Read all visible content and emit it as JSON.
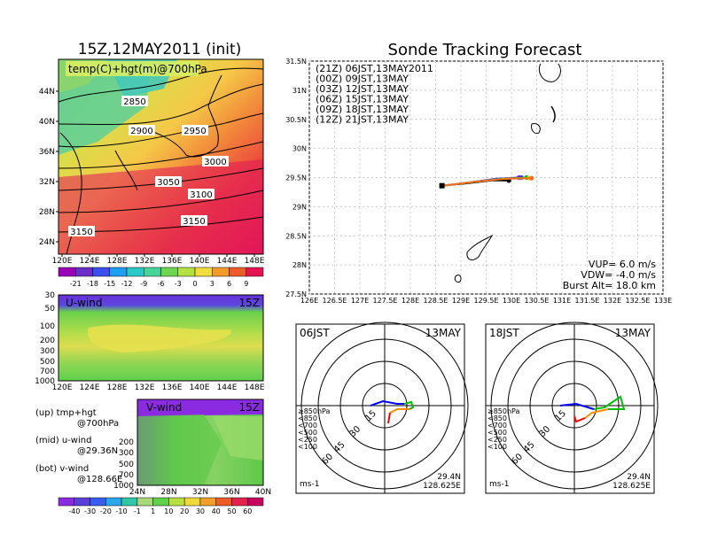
{
  "chart_data": [
    {
      "type": "heatmap",
      "title": "15Z,12MAY2011 (init)",
      "panel_label": "temp(C)+hgt(m)@700hPa",
      "x_ticks": [
        "120E",
        "124E",
        "128E",
        "132E",
        "136E",
        "140E",
        "144E",
        "148E"
      ],
      "y_ticks": [
        "24N",
        "28N",
        "32N",
        "36N",
        "40N",
        "44N"
      ],
      "contour_labels": [
        "2850",
        "2900",
        "2950",
        "3000",
        "3050",
        "3100",
        "3150",
        "3150"
      ],
      "colorbar_ticks": [
        "-21",
        "-18",
        "-15",
        "-12",
        "-9",
        "-6",
        "-3",
        "0",
        "3",
        "6",
        "9"
      ],
      "colorbar_colors": [
        "#9a00b8",
        "#6c2ec8",
        "#3b4ff0",
        "#1e9ef2",
        "#28c8c8",
        "#46d49a",
        "#6ed650",
        "#b4e040",
        "#f0dc3c",
        "#f39a2a",
        "#ee5a2a",
        "#e5144f"
      ]
    },
    {
      "type": "heatmap",
      "panel_label": "U-wind",
      "time_label": "15Z",
      "x_ticks": [
        "120E",
        "124E",
        "128E",
        "132E",
        "136E",
        "140E",
        "144E",
        "148E"
      ],
      "y_ticks": [
        "30",
        "50",
        "100",
        "200",
        "300",
        "500",
        "700",
        "1000"
      ]
    },
    {
      "type": "heatmap",
      "panel_label": "V-wind",
      "time_label": "15Z",
      "x_ticks": [
        "24N",
        "28N",
        "32N",
        "36N",
        "40N"
      ],
      "y_ticks": [
        "200",
        "300",
        "500",
        "700",
        "1000"
      ],
      "colorbar_ticks": [
        "-40",
        "-30",
        "-20",
        "-10",
        "-1",
        "1",
        "10",
        "20",
        "30",
        "40",
        "50",
        "60"
      ],
      "colorbar_colors": [
        "#8a2be2",
        "#5a3fd8",
        "#3a5cf0",
        "#2aa8ee",
        "#30c8a8",
        "#a8d878",
        "#5ed24a",
        "#b8e040",
        "#f0d83a",
        "#f0a02a",
        "#ec5a26",
        "#e2224a",
        "#c80060"
      ]
    },
    {
      "type": "line",
      "title": "Sonde Tracking Forecast",
      "x_ticks": [
        "126E",
        "126.5E",
        "127E",
        "127.5E",
        "128E",
        "128.5E",
        "129E",
        "129.5E",
        "130E",
        "130.5E",
        "131E",
        "131.5E",
        "132E",
        "132.5E",
        "133E"
      ],
      "y_ticks": [
        "27.5N",
        "28N",
        "28.5N",
        "29N",
        "29.5N",
        "30N",
        "30.5N",
        "31N",
        "31.5N"
      ],
      "xlim": [
        126,
        133
      ],
      "ylim": [
        27.5,
        31.5
      ],
      "grid": true,
      "series": [
        {
          "name": "(21Z)  06JST,13MAY2011",
          "color": "#000000",
          "x": [
            128.625,
            129.1,
            129.6,
            129.95
          ],
          "y": [
            29.36,
            29.4,
            29.45,
            29.45
          ]
        },
        {
          "name": "(00Z)  09JST,13MAY",
          "color": "#c000c0",
          "x": [
            128.625,
            129.2,
            129.7,
            130.15
          ],
          "y": [
            29.36,
            29.42,
            29.48,
            29.5
          ]
        },
        {
          "name": "(03Z)  12JST,13MAY",
          "color": "#3030ff",
          "x": [
            128.625,
            129.2,
            129.7,
            130.2
          ],
          "y": [
            29.36,
            29.42,
            29.48,
            29.5
          ]
        },
        {
          "name": "(06Z)  15JST,13MAY",
          "color": "#00c000",
          "x": [
            128.625,
            129.3,
            129.8,
            130.3
          ],
          "y": [
            29.36,
            29.43,
            29.48,
            29.5
          ]
        },
        {
          "name": "(09Z)  18JST,13MAY",
          "color": "#f0c030",
          "x": [
            128.625,
            129.3,
            129.85,
            130.35
          ],
          "y": [
            29.36,
            29.43,
            29.48,
            29.49
          ]
        },
        {
          "name": "(12Z)  21JST,13MAY",
          "color": "#f07020",
          "x": [
            128.625,
            129.3,
            129.9,
            130.4
          ],
          "y": [
            29.36,
            29.43,
            29.48,
            29.49
          ]
        }
      ],
      "info_lines": [
        "VUP= 6.0  m/s",
        "VDW= -4.0  m/s",
        "Burst Alt= 18.0  km"
      ]
    },
    {
      "type": "scatter",
      "time_label": "06JST",
      "date_label": "13MAY",
      "ring_labels": [
        "15",
        "30",
        "45",
        "60"
      ],
      "unit_label": "ms-1",
      "location": [
        "29.4N",
        "128.625E"
      ],
      "level_legend": [
        {
          "label": "≥850hPa",
          "color": "#ff0000"
        },
        {
          "label": "<850",
          "color": "#ff8c00"
        },
        {
          "label": "<700",
          "color": "#e0c000"
        },
        {
          "label": "<500",
          "color": "#00c000"
        },
        {
          "label": "<250",
          "color": "#00b0d0"
        },
        {
          "label": "<100",
          "color": "#0000ff"
        }
      ]
    },
    {
      "type": "scatter",
      "time_label": "18JST",
      "date_label": "13MAY",
      "ring_labels": [
        "15",
        "30",
        "45",
        "60"
      ],
      "unit_label": "ms-1",
      "location": [
        "29.4N",
        "128.625E"
      ],
      "level_legend": [
        {
          "label": "≥850hPa",
          "color": "#ff0000"
        },
        {
          "label": "<850",
          "color": "#ff8c00"
        },
        {
          "label": "<700",
          "color": "#e0c000"
        },
        {
          "label": "<500",
          "color": "#00c000"
        },
        {
          "label": "<250",
          "color": "#00b0d0"
        },
        {
          "label": "<100",
          "color": "#0000ff"
        }
      ]
    }
  ],
  "side_legend": {
    "up": "(up) tmp+hgt",
    "up2": "@700hPa",
    "mid": "(mid) u-wind",
    "mid2": "@29.36N",
    "bot": "(bot) v-wind",
    "bot2": "@128.66E"
  }
}
